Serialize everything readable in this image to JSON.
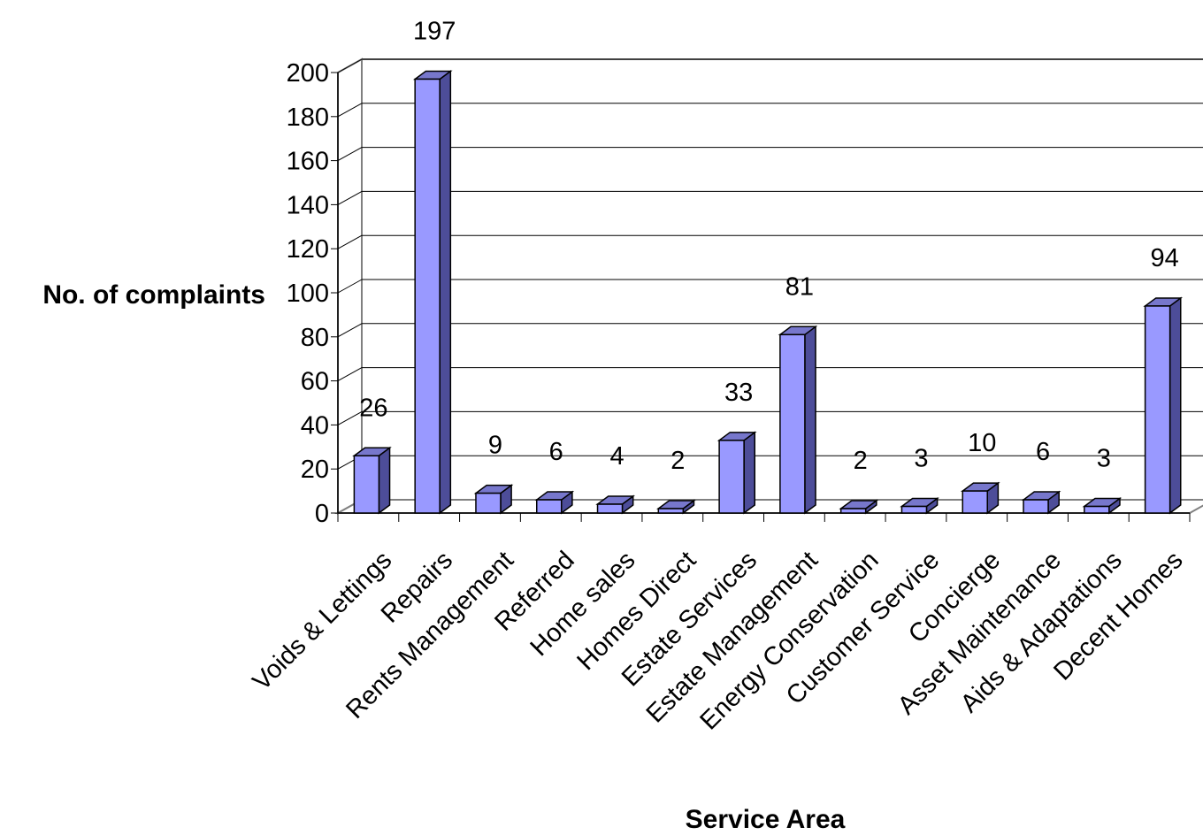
{
  "chart_data": {
    "type": "bar",
    "title": "",
    "xlabel": "Service Area",
    "ylabel": "No. of complaints",
    "ylim": [
      0,
      200
    ],
    "ytick_step": 20,
    "grid": true,
    "legend": "none",
    "bar_color": "#9999ff",
    "categories": [
      "Voids & Lettings",
      "Repairs",
      "Rents Management",
      "Referred",
      "Home sales",
      "Homes Direct",
      "Estate Services",
      "Estate Management",
      "Energy Conservation",
      "Customer Service",
      "Concierge",
      "Asset Maintenance",
      "Aids & Adaptations",
      "Decent Homes"
    ],
    "series": [
      {
        "values": [
          26,
          197,
          9,
          6,
          4,
          2,
          33,
          81,
          2,
          3,
          10,
          6,
          3,
          94
        ]
      }
    ]
  }
}
